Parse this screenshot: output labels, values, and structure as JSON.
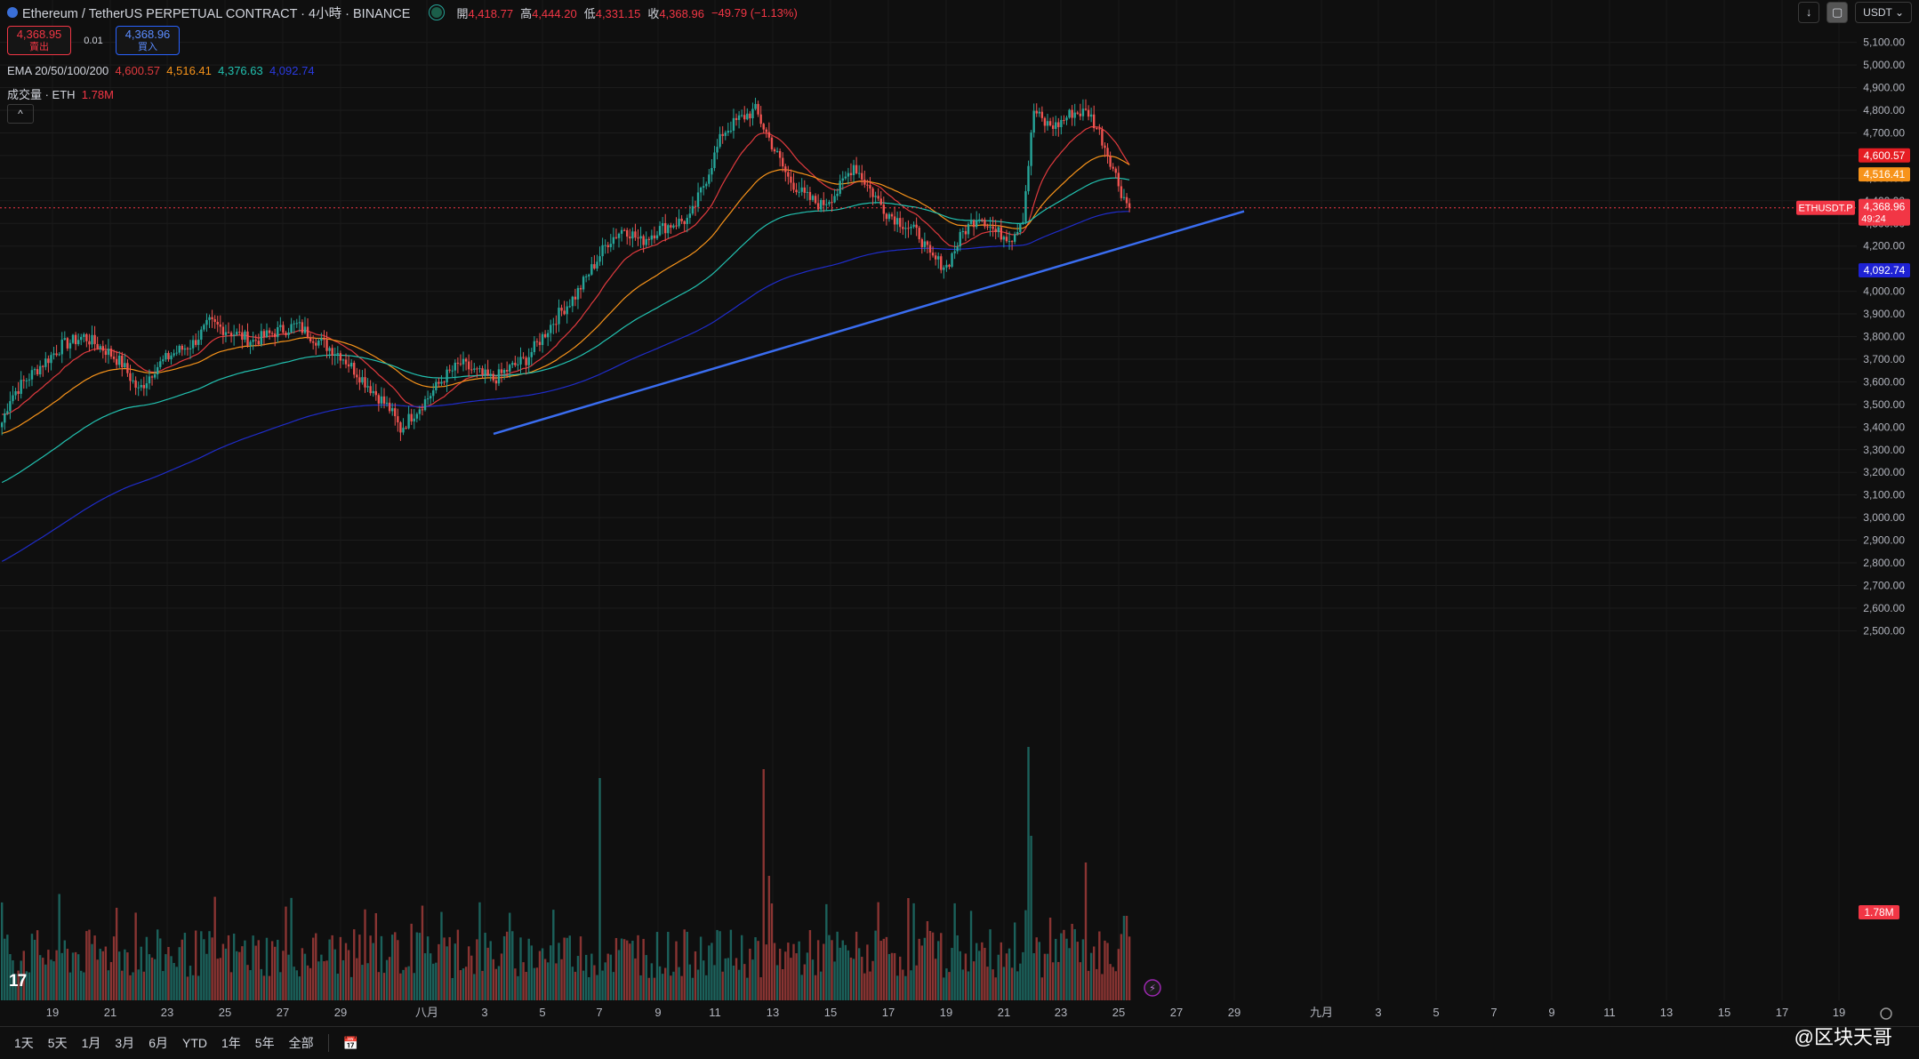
{
  "header": {
    "title": "Ethereum / TetherUS PERPETUAL CONTRACT · 4小時 · BINANCE",
    "open_label": "開",
    "open": "4,418.77",
    "high_label": "高",
    "high": "4,444.20",
    "low_label": "低",
    "low": "4,331.15",
    "close_label": "收",
    "close": "4,368.96",
    "change": "−49.79 (−1.13%)"
  },
  "trade": {
    "sell_price": "4,368.95",
    "sell_label": "賣出",
    "spread": "0.01",
    "buy_price": "4,368.96",
    "buy_label": "買入"
  },
  "indicators": {
    "ema_label": "EMA 20/50/100/200",
    "ema20": "4,600.57",
    "ema50": "4,516.41",
    "ema100": "4,376.63",
    "ema200": "4,092.74",
    "volume_label": "成交量 · ETH",
    "volume": "1.78M"
  },
  "toolbar": {
    "currency": "USDT"
  },
  "timeframes": [
    "1天",
    "5天",
    "1月",
    "3月",
    "6月",
    "YTD",
    "1年",
    "5年",
    "全部"
  ],
  "watermark": "@区块天哥",
  "chart_data": {
    "type": "candlestick",
    "symbol_tag": "ETHUSDT.P",
    "countdown": "49:24",
    "y_ticks": [
      5100,
      5000,
      4900,
      4800,
      4700,
      4600,
      4500,
      4400,
      4300,
      4200,
      4100,
      4000,
      3900,
      3800,
      3700,
      3600,
      3500,
      3400,
      3300,
      3200,
      3100,
      3000,
      2900,
      2800,
      2700,
      2600,
      2500
    ],
    "y_range": [
      2460,
      5130
    ],
    "x_ticks": [
      "19",
      "21",
      "23",
      "25",
      "27",
      "29",
      "八月",
      "3",
      "5",
      "7",
      "9",
      "11",
      "13",
      "15",
      "17",
      "19",
      "21",
      "23",
      "25",
      "27",
      "29",
      "九月",
      "3",
      "5",
      "7",
      "9",
      "11",
      "13",
      "15",
      "17",
      "19"
    ],
    "price_anchors": [
      [
        0,
        3420
      ],
      [
        3,
        3530
      ],
      [
        8,
        3600
      ],
      [
        14,
        3670
      ],
      [
        22,
        3760
      ],
      [
        30,
        3800
      ],
      [
        38,
        3740
      ],
      [
        44,
        3680
      ],
      [
        50,
        3560
      ],
      [
        56,
        3660
      ],
      [
        62,
        3720
      ],
      [
        70,
        3770
      ],
      [
        76,
        3860
      ],
      [
        84,
        3820
      ],
      [
        92,
        3780
      ],
      [
        100,
        3820
      ],
      [
        108,
        3850
      ],
      [
        116,
        3780
      ],
      [
        124,
        3720
      ],
      [
        130,
        3640
      ],
      [
        136,
        3560
      ],
      [
        142,
        3480
      ],
      [
        146,
        3390
      ],
      [
        150,
        3450
      ],
      [
        156,
        3530
      ],
      [
        162,
        3620
      ],
      [
        168,
        3680
      ],
      [
        174,
        3640
      ],
      [
        180,
        3610
      ],
      [
        186,
        3660
      ],
      [
        192,
        3700
      ],
      [
        198,
        3800
      ],
      [
        204,
        3900
      ],
      [
        210,
        3980
      ],
      [
        216,
        4100
      ],
      [
        222,
        4220
      ],
      [
        228,
        4280
      ],
      [
        234,
        4220
      ],
      [
        240,
        4270
      ],
      [
        246,
        4300
      ],
      [
        252,
        4320
      ],
      [
        258,
        4500
      ],
      [
        264,
        4700
      ],
      [
        270,
        4760
      ],
      [
        276,
        4800
      ],
      [
        282,
        4650
      ],
      [
        288,
        4500
      ],
      [
        294,
        4420
      ],
      [
        300,
        4380
      ],
      [
        306,
        4440
      ],
      [
        312,
        4560
      ],
      [
        318,
        4450
      ],
      [
        324,
        4350
      ],
      [
        330,
        4300
      ],
      [
        336,
        4250
      ],
      [
        340,
        4150
      ],
      [
        346,
        4110
      ],
      [
        352,
        4260
      ],
      [
        358,
        4340
      ],
      [
        364,
        4260
      ],
      [
        370,
        4240
      ],
      [
        374,
        4330
      ],
      [
        378,
        4800
      ],
      [
        382,
        4740
      ],
      [
        386,
        4730
      ],
      [
        392,
        4790
      ],
      [
        398,
        4790
      ],
      [
        402,
        4700
      ],
      [
        406,
        4580
      ],
      [
        410,
        4440
      ],
      [
        413,
        4369
      ]
    ],
    "ema_series": [
      {
        "name": "EMA 20",
        "last": 4600.57,
        "color": "#e03a3e"
      },
      {
        "name": "EMA 50",
        "last": 4516.41,
        "color": "#f7931a"
      },
      {
        "name": "EMA 100",
        "last": 4376.63,
        "color": "#22c1b0"
      },
      {
        "name": "EMA 200",
        "last": 4092.74,
        "color": "#1f2cc9"
      }
    ],
    "trendline": {
      "from": [
        3370,
        3378
      ],
      "to": [
        3420,
        4385
      ],
      "color": "#3a6df0"
    },
    "last_price": 4368.96
  }
}
